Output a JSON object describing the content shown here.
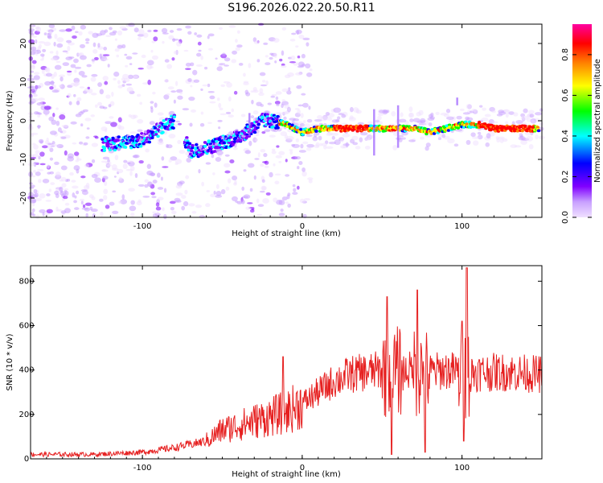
{
  "title": "S196.2026.022.20.50.R11",
  "chart_data": [
    {
      "type": "heatmap",
      "xlabel": "Height of straight line (km)",
      "ylabel": "Frequency (Hz)",
      "xlim": [
        -170,
        150
      ],
      "ylim": [
        -25,
        25
      ],
      "xticks": [
        -100,
        0,
        100
      ],
      "yticks": [
        -20,
        -10,
        0,
        10,
        20
      ],
      "colorbar": {
        "label": "Normalized spectral amplitude",
        "range": [
          0,
          0.95
        ],
        "ticks": [
          0.0,
          0.2,
          0.4,
          0.6,
          0.8
        ],
        "tick_labels": [
          "0.0",
          "0.2",
          "0.4",
          "0.6",
          "0.8"
        ],
        "colors": [
          "#f0e0ff",
          "#c8a0ff",
          "#8000ff",
          "#0000ff",
          "#00ffff",
          "#00ff00",
          "#ffff00",
          "#ff8000",
          "#ff0000",
          "#ff00a0"
        ]
      },
      "ridge": {
        "x": [
          -120,
          -100,
          -85,
          -78,
          -70,
          -60,
          -45,
          -35,
          -25,
          -18,
          -10,
          0,
          10,
          20,
          30,
          40,
          50,
          60,
          70,
          80,
          90,
          100,
          110,
          120,
          130,
          148
        ],
        "y": [
          -6,
          -5,
          -1,
          0,
          -8,
          -7,
          -5,
          -3,
          0,
          0,
          -1,
          -3,
          -2,
          -2,
          -2,
          -2,
          -2,
          -2,
          -2,
          -3,
          -2,
          -1,
          -1,
          -2,
          -2,
          -2
        ]
      }
    },
    {
      "type": "line",
      "xlabel": "Height of straight line (km)",
      "ylabel": "SNR (10 * v/v)",
      "xlim": [
        -170,
        150
      ],
      "ylim": [
        0,
        870
      ],
      "xticks": [
        -100,
        0,
        100
      ],
      "yticks": [
        0,
        200,
        400,
        600,
        800
      ],
      "color": "#e62020",
      "trend": {
        "x": [
          -170,
          -130,
          -100,
          -80,
          -60,
          -50,
          -40,
          -30,
          -20,
          -10,
          0,
          10,
          20,
          30,
          40,
          50,
          60,
          70,
          80,
          90,
          100,
          110,
          120,
          130,
          150
        ],
        "y": [
          20,
          20,
          30,
          50,
          80,
          130,
          150,
          170,
          190,
          210,
          250,
          300,
          350,
          380,
          390,
          400,
          390,
          400,
          390,
          400,
          390,
          390,
          390,
          390,
          380
        ]
      },
      "peaks": [
        {
          "x": -12,
          "y": 460
        },
        {
          "x": 53,
          "y": 730
        },
        {
          "x": 72,
          "y": 760
        },
        {
          "x": 100,
          "y": 620
        },
        {
          "x": 103,
          "y": 860
        }
      ],
      "dips": [
        {
          "x": 56,
          "y": 20
        },
        {
          "x": 77,
          "y": 30
        },
        {
          "x": 101,
          "y": 80
        }
      ]
    }
  ]
}
